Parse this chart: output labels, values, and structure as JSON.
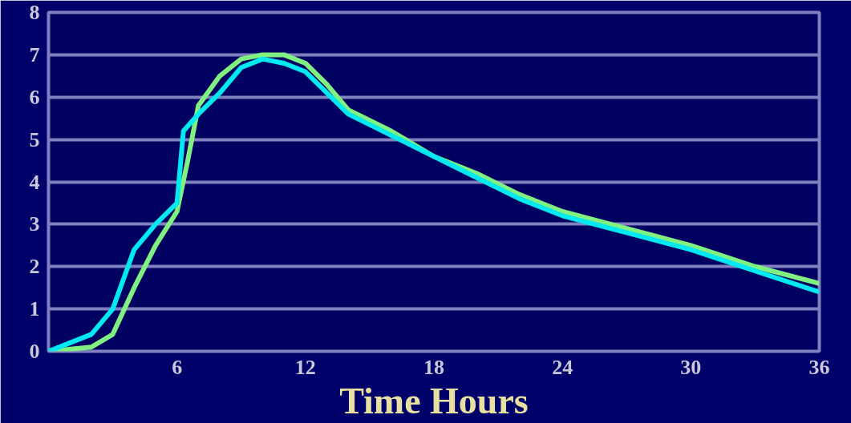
{
  "chart_data": {
    "type": "line",
    "xlabel": "Time Hours",
    "xlim": [
      0,
      36
    ],
    "xticks": [
      6,
      12,
      18,
      24,
      30,
      36
    ],
    "ylim": [
      0,
      8
    ],
    "yticks": [
      0,
      1,
      2,
      3,
      4,
      5,
      6,
      7,
      8
    ],
    "grid": "y",
    "line_style": "solid",
    "marker": "none",
    "series": [
      {
        "color": "#80f080",
        "x": [
          0,
          2,
          3,
          4,
          5,
          6,
          6.5,
          7,
          8,
          9,
          10,
          11,
          12,
          13,
          14,
          16,
          18,
          20,
          22,
          24,
          27,
          30,
          33,
          36
        ],
        "values": [
          0,
          0.1,
          0.4,
          1.5,
          2.5,
          3.3,
          4.5,
          5.8,
          6.5,
          6.9,
          7.0,
          7.0,
          6.8,
          6.3,
          5.7,
          5.2,
          4.6,
          4.2,
          3.7,
          3.3,
          2.9,
          2.5,
          2.0,
          1.6
        ]
      },
      {
        "color": "#00e8f0",
        "x": [
          0,
          2,
          3,
          4,
          5,
          6,
          6.3,
          7,
          8,
          9,
          10,
          11,
          12,
          13,
          14,
          16,
          18,
          20,
          22,
          24,
          27,
          30,
          33,
          36
        ],
        "values": [
          0,
          0.4,
          1.0,
          2.4,
          3.0,
          3.5,
          5.2,
          5.6,
          6.1,
          6.7,
          6.9,
          6.8,
          6.6,
          6.1,
          5.6,
          5.1,
          4.6,
          4.1,
          3.6,
          3.2,
          2.8,
          2.4,
          1.9,
          1.4
        ]
      }
    ]
  }
}
